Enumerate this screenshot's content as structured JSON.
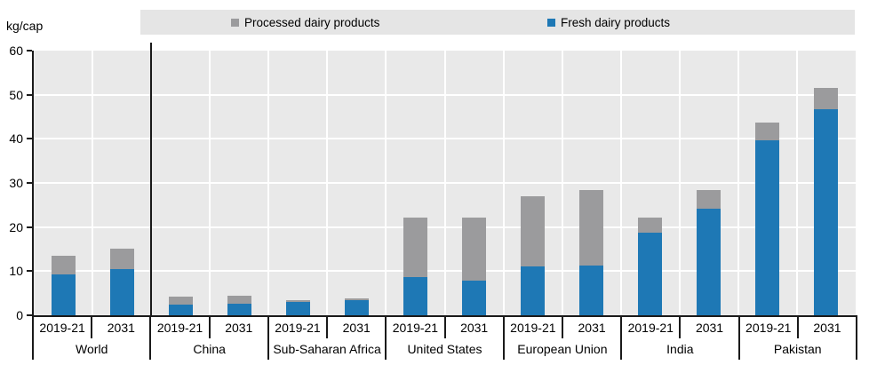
{
  "chart_data": {
    "type": "bar",
    "stacked": true,
    "title": "",
    "ylabel": "kg/cap",
    "xlabel": "",
    "ylim": [
      0,
      60
    ],
    "yticks": [
      0,
      10,
      20,
      30,
      40,
      50,
      60
    ],
    "grid": true,
    "legend_position": "top",
    "groups": [
      "World",
      "China",
      "Sub-Saharan Africa",
      "United States",
      "European Union",
      "India",
      "Pakistan"
    ],
    "bar_labels": [
      "2019-21",
      "2031"
    ],
    "series": [
      {
        "name": "Fresh dairy products",
        "color": "#1e78b5",
        "values": [
          [
            9.2,
            10.5
          ],
          [
            2.5,
            2.7
          ],
          [
            3.1,
            3.5
          ],
          [
            8.7,
            7.9
          ],
          [
            11.0,
            11.2
          ],
          [
            18.8,
            24.2
          ],
          [
            39.6,
            46.8
          ]
        ]
      },
      {
        "name": "Processed dairy products",
        "color": "#9b9b9d",
        "values": [
          [
            4.3,
            4.7
          ],
          [
            1.7,
            1.7
          ],
          [
            0.4,
            0.4
          ],
          [
            13.4,
            14.2
          ],
          [
            16.0,
            17.2
          ],
          [
            3.3,
            4.2
          ],
          [
            4.1,
            4.8
          ]
        ]
      }
    ],
    "separator_after_group_index": 0
  }
}
